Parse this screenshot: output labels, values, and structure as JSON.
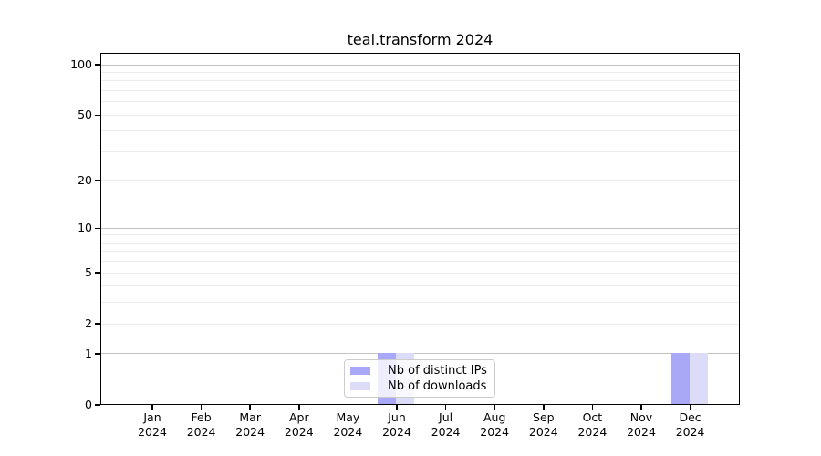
{
  "chart_data": {
    "type": "bar",
    "title": "teal.transform 2024",
    "categories": [
      "Jan 2024",
      "Feb 2024",
      "Mar 2024",
      "Apr 2024",
      "May 2024",
      "Jun 2024",
      "Jul 2024",
      "Aug 2024",
      "Sep 2024",
      "Oct 2024",
      "Nov 2024",
      "Dec 2024"
    ],
    "series": [
      {
        "name": "Nb of distinct IPs",
        "color": "#a8a8f7",
        "values": [
          0,
          0,
          0,
          0,
          0,
          1,
          0,
          0,
          0,
          0,
          0,
          1
        ]
      },
      {
        "name": "Nb of downloads",
        "color": "#dcdcf9",
        "values": [
          0,
          0,
          0,
          0,
          0,
          1,
          0,
          0,
          0,
          0,
          0,
          1
        ]
      }
    ],
    "xlabel": "",
    "ylabel": "",
    "yscale": "log1p",
    "yticks": [
      0,
      1,
      2,
      5,
      10,
      20,
      50,
      100
    ],
    "ylim": [
      0,
      119
    ],
    "grid": {
      "on": true,
      "major_at": [
        1,
        10,
        100
      ],
      "minor_at": [
        2,
        3,
        4,
        5,
        6,
        7,
        8,
        9,
        20,
        30,
        40,
        50,
        60,
        70,
        80,
        90
      ]
    },
    "legend": {
      "position": "bottom-center-inside",
      "entries": [
        "Nb of distinct IPs",
        "Nb of downloads"
      ]
    },
    "colors": {
      "distinct_ips": "#a8a8f7",
      "downloads": "#dcdcf9",
      "grid_major": "#c2c2c2",
      "grid_minor": "#ededed",
      "spine": "#000000"
    }
  }
}
